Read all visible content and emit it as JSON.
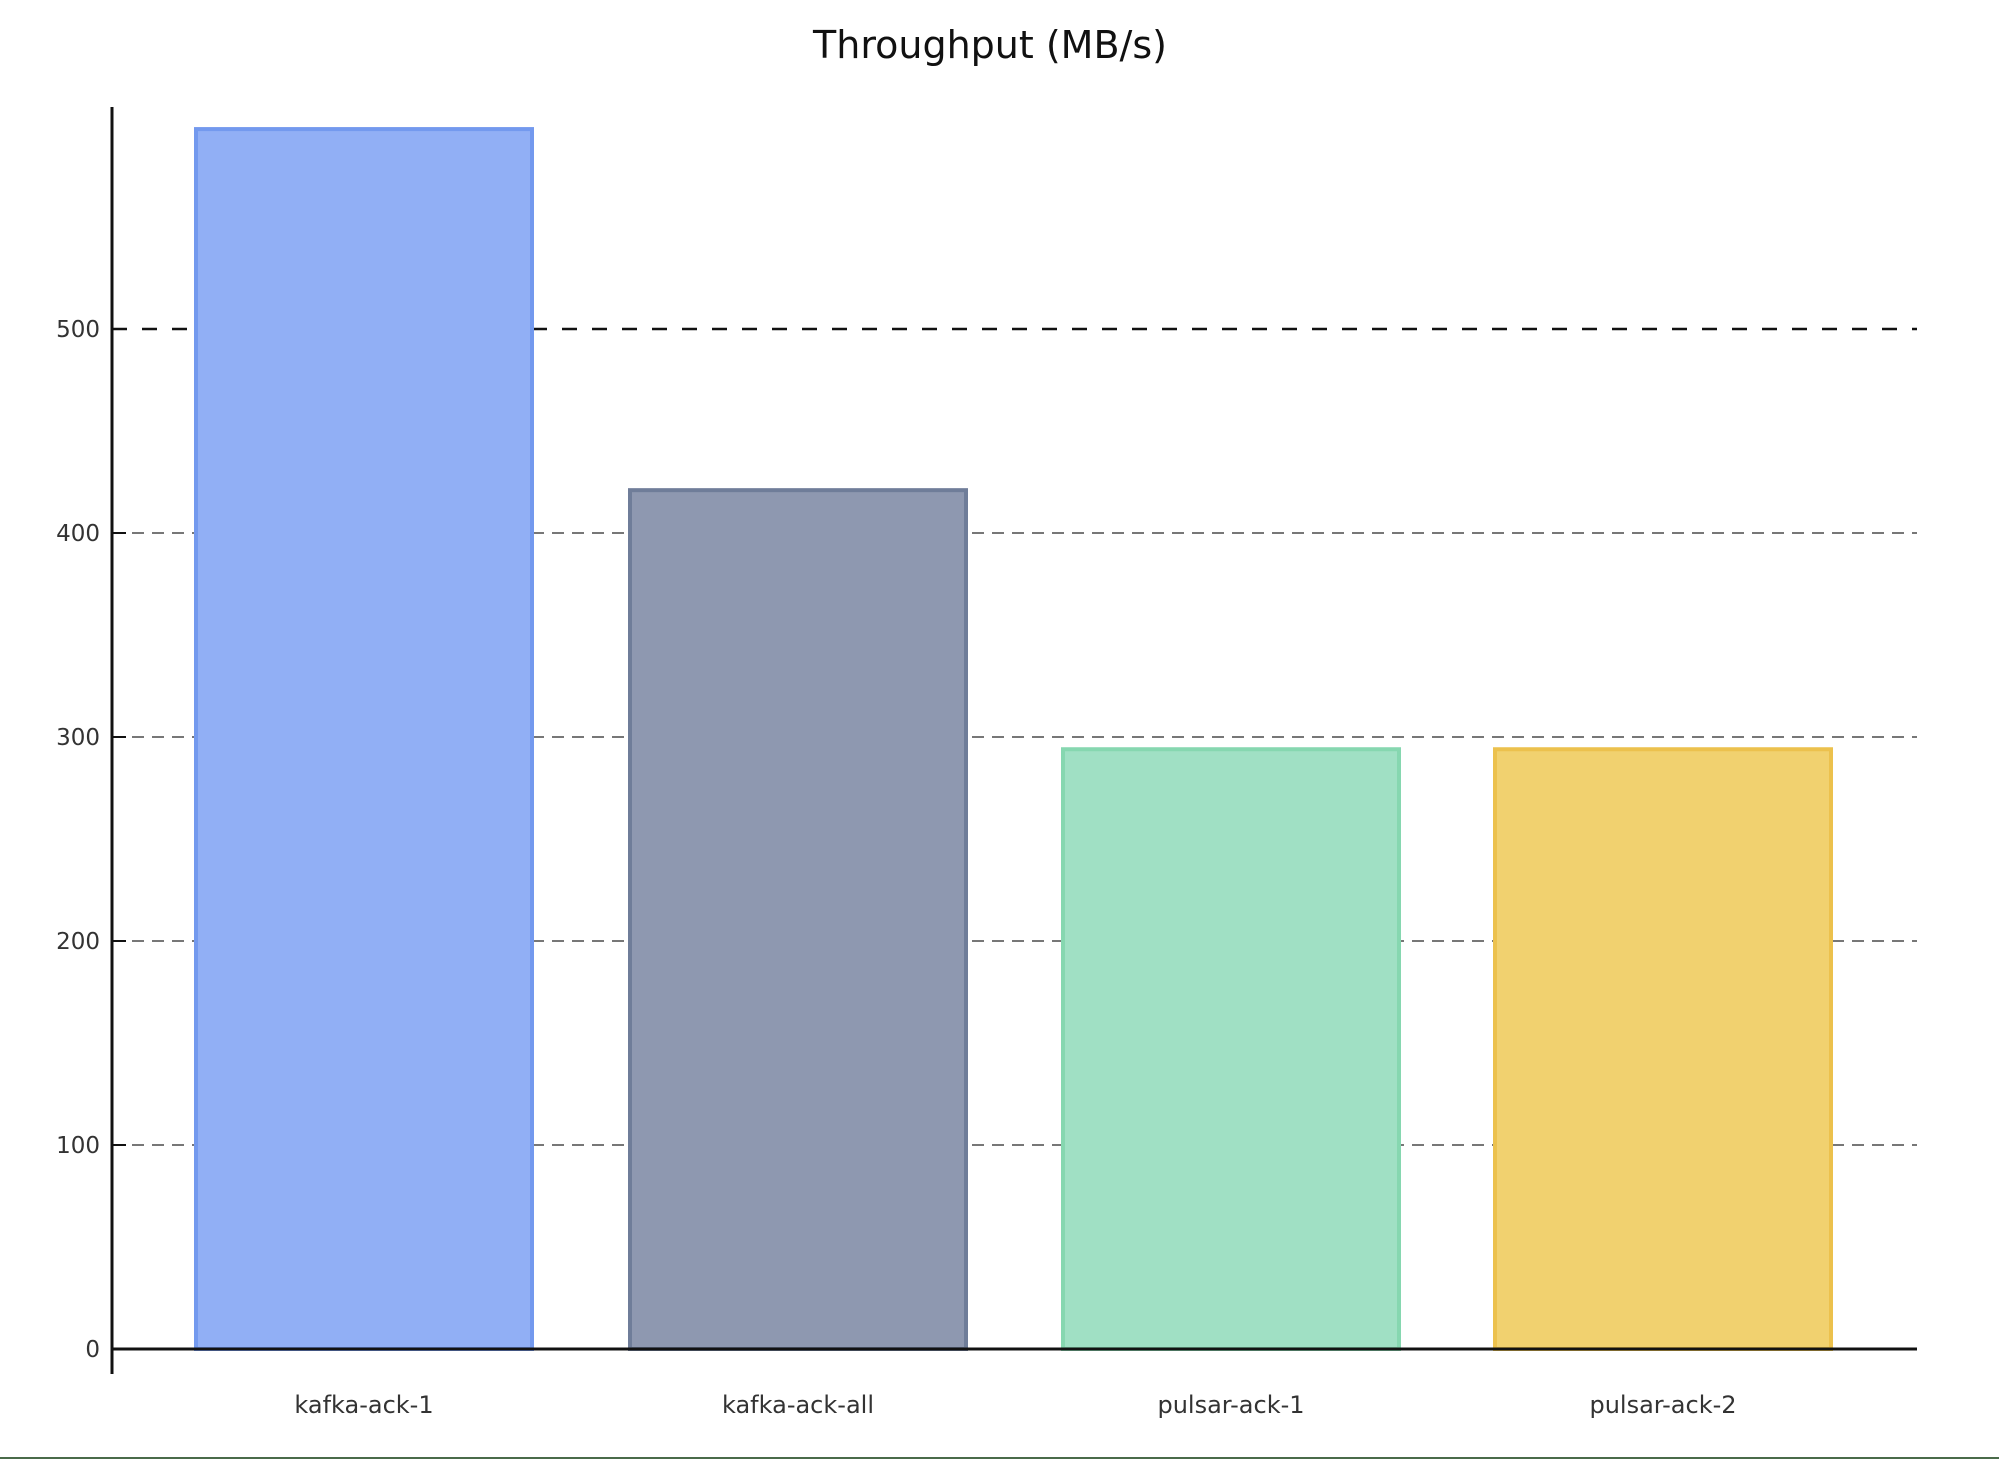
{
  "chart_data": {
    "type": "bar",
    "title": "Throughput (MB/s)",
    "xlabel": "",
    "ylabel": "",
    "categories": [
      "kafka-ack-1",
      "kafka-ack-all",
      "pulsar-ack-1",
      "pulsar-ack-2"
    ],
    "values": [
      598,
      421,
      294,
      294
    ],
    "colors": {
      "fill": [
        "#91aff5",
        "#8e98b0",
        "#a0e0c4",
        "#f1d16f"
      ],
      "edge": [
        "#7399ee",
        "#6f7d99",
        "#86d7b0",
        "#ecc14d"
      ]
    },
    "yticks": [
      0,
      100,
      200,
      300,
      400,
      500
    ],
    "ylim": [
      0,
      610
    ],
    "grid": {
      "axis": "y",
      "style": "dashed",
      "color": "#777777",
      "highlight": {
        "value": 500,
        "color": "#111111"
      }
    },
    "legend": null
  }
}
